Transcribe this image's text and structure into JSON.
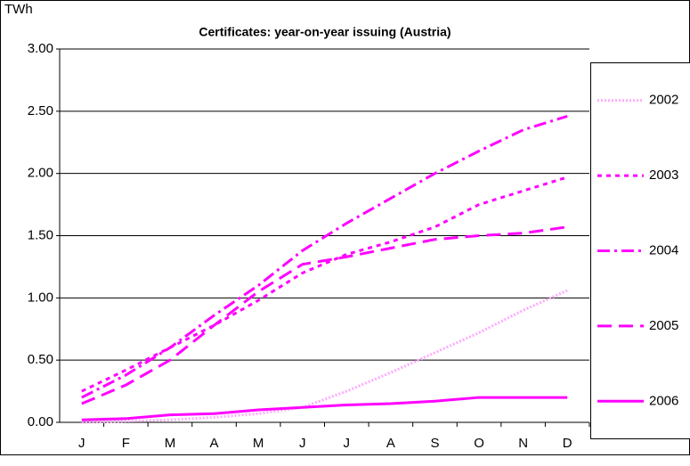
{
  "chart_data": {
    "type": "line",
    "title": "Certificates: year-on-year issuing (Austria)",
    "y_label": "TWh",
    "categories": [
      "J",
      "F",
      "M",
      "A",
      "M",
      "J",
      "J",
      "A",
      "S",
      "O",
      "N",
      "D"
    ],
    "series": [
      {
        "name": "2002",
        "color": "#ffaaff",
        "style": "dotted",
        "values": [
          0.0,
          0.01,
          0.02,
          0.04,
          0.07,
          0.12,
          0.25,
          0.4,
          0.56,
          0.72,
          0.9,
          1.06
        ]
      },
      {
        "name": "2003",
        "color": "#ff00ff",
        "style": "short-dash",
        "values": [
          0.25,
          0.42,
          0.6,
          0.78,
          0.98,
          1.2,
          1.35,
          1.45,
          1.57,
          1.75,
          1.86,
          1.97
        ]
      },
      {
        "name": "2004",
        "color": "#ff00ff",
        "style": "dash-dot",
        "values": [
          0.2,
          0.38,
          0.6,
          0.86,
          1.1,
          1.38,
          1.6,
          1.8,
          2.0,
          2.18,
          2.35,
          2.46
        ]
      },
      {
        "name": "2005",
        "color": "#ff00ff",
        "style": "long-dash",
        "values": [
          0.15,
          0.3,
          0.5,
          0.78,
          1.05,
          1.27,
          1.33,
          1.4,
          1.47,
          1.5,
          1.52,
          1.57
        ]
      },
      {
        "name": "2006",
        "color": "#ff00ff",
        "style": "solid",
        "values": [
          0.02,
          0.03,
          0.06,
          0.07,
          0.1,
          0.12,
          0.14,
          0.15,
          0.17,
          0.2,
          0.2,
          0.2
        ]
      }
    ],
    "ylim": [
      0,
      3
    ],
    "yticks": [
      {
        "value": 0,
        "label": "0.00"
      },
      {
        "value": 0.5,
        "label": "0.50"
      },
      {
        "value": 1,
        "label": "1.00"
      },
      {
        "value": 1.5,
        "label": "1.50"
      },
      {
        "value": 2,
        "label": "2.00"
      },
      {
        "value": 2.5,
        "label": "2.50"
      },
      {
        "value": 3,
        "label": "3.00"
      }
    ],
    "grid": true,
    "legend": "right"
  }
}
